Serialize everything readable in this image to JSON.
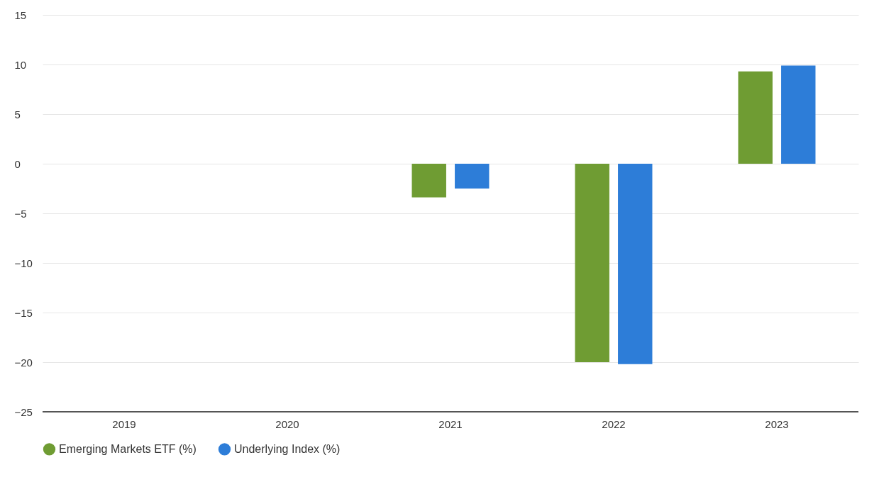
{
  "chart_data": {
    "type": "bar",
    "categories": [
      "2019",
      "2020",
      "2021",
      "2022",
      "2023"
    ],
    "series": [
      {
        "name": "Emerging Markets ETF (%)",
        "color": "#6f9c33",
        "values": [
          null,
          null,
          -3.4,
          -20.0,
          9.3
        ]
      },
      {
        "name": "Underlying Index (%)",
        "color": "#2d7dd8",
        "values": [
          null,
          null,
          -2.5,
          -20.2,
          9.9
        ]
      }
    ],
    "ylim": [
      -25,
      15
    ],
    "yticks": [
      -25,
      -20,
      -15,
      -10,
      -5,
      0,
      5,
      10,
      15
    ],
    "grid": "y",
    "legend": "bottom"
  }
}
